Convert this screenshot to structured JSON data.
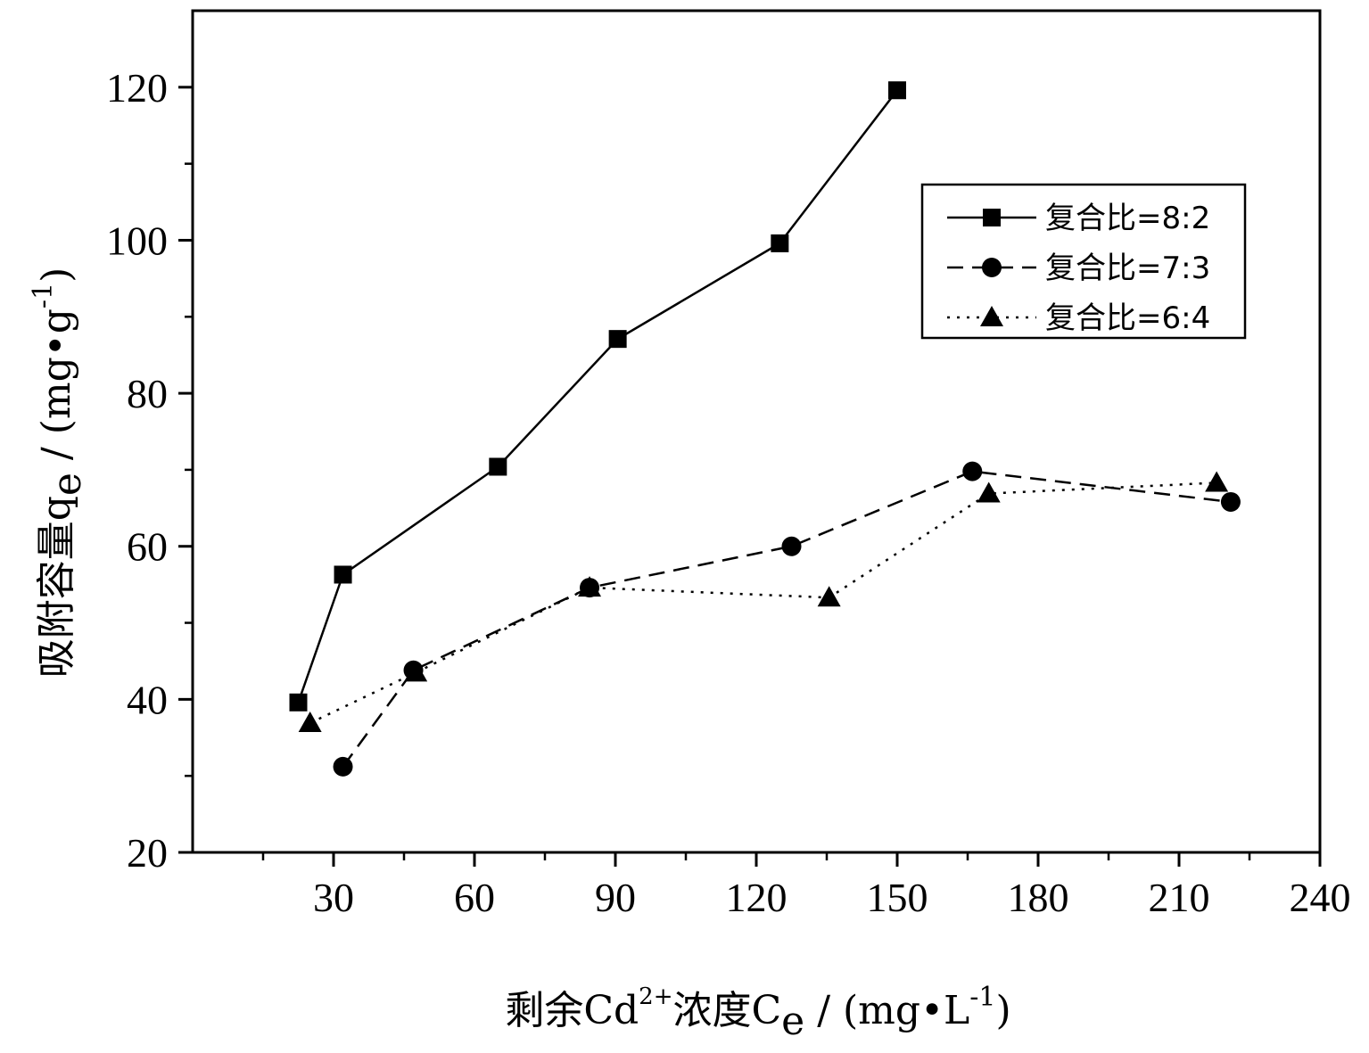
{
  "chart_data": {
    "type": "line",
    "title": "",
    "xlabel": {
      "pre": "剩余Cd",
      "sup": "2+",
      "mid": "浓度C",
      "sub": "e",
      "post": " / (mg•L",
      "unit_sup": "-1",
      "close": ")"
    },
    "ylabel": {
      "pre": "吸附容量q",
      "sub": "e",
      "post": " / (mg•g",
      "unit_sup": "-1",
      "close": ")"
    },
    "xlim": [
      0,
      240
    ],
    "ylim": [
      20,
      130
    ],
    "xticks": [
      30,
      60,
      90,
      120,
      150,
      180,
      210,
      240
    ],
    "yticks": [
      20,
      40,
      60,
      80,
      100,
      120
    ],
    "grid": false,
    "legend_position": "top-right",
    "series": [
      {
        "name": "复合比=8:2",
        "marker": "square",
        "line_style": "solid",
        "color": "#000000",
        "x": [
          22.5,
          32,
          65,
          90.5,
          125,
          150
        ],
        "y": [
          39.6,
          56.3,
          70.4,
          87.1,
          99.6,
          119.6
        ]
      },
      {
        "name": "复合比=7:3",
        "marker": "circle",
        "line_style": "dashed",
        "color": "#000000",
        "x": [
          32,
          47,
          84.5,
          127.5,
          166,
          221
        ],
        "y": [
          31.2,
          43.8,
          54.6,
          60.0,
          69.8,
          65.8
        ]
      },
      {
        "name": "复合比=6:4",
        "marker": "triangle",
        "line_style": "dotted",
        "color": "#000000",
        "x": [
          25,
          47.5,
          84.5,
          135.5,
          169.5,
          218
        ],
        "y": [
          36.9,
          43.5,
          54.6,
          53.3,
          66.9,
          68.3
        ]
      }
    ]
  }
}
